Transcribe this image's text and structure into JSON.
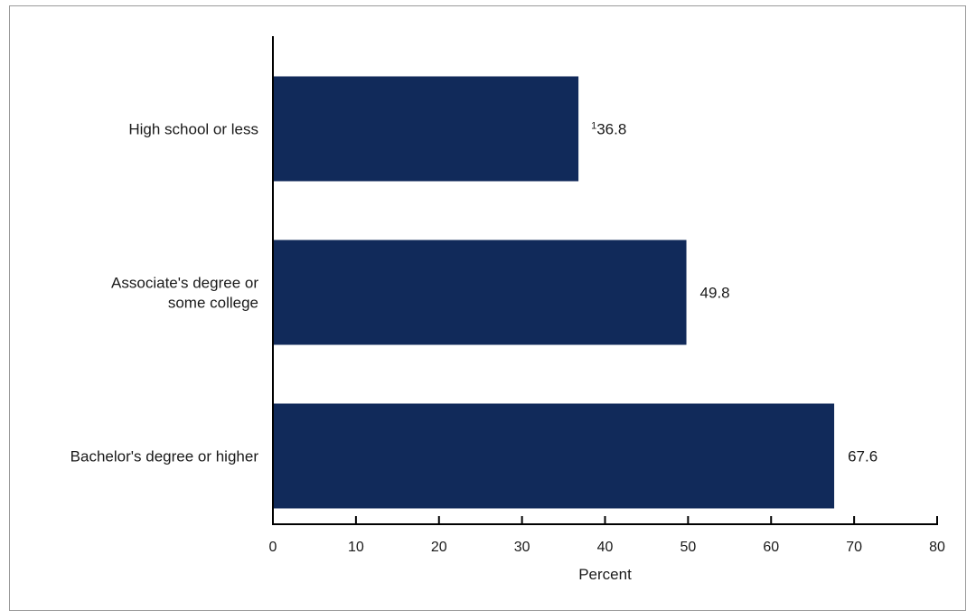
{
  "chart_data": {
    "type": "bar",
    "orientation": "horizontal",
    "categories": [
      [
        "High school or less"
      ],
      [
        "Associate's degree or",
        "some college"
      ],
      [
        "Bachelor's degree or higher"
      ]
    ],
    "values": [
      36.8,
      49.8,
      67.6
    ],
    "value_labels": [
      "36.8",
      "49.8",
      "67.6"
    ],
    "value_label_footnotes": [
      "1",
      "",
      ""
    ],
    "xlabel": "Percent",
    "ylabel": "",
    "xlim": [
      0,
      80
    ],
    "xticks": [
      0,
      10,
      20,
      30,
      40,
      50,
      60,
      70,
      80
    ],
    "grid": false,
    "legend": "none",
    "bar_color": "#112a5a"
  }
}
